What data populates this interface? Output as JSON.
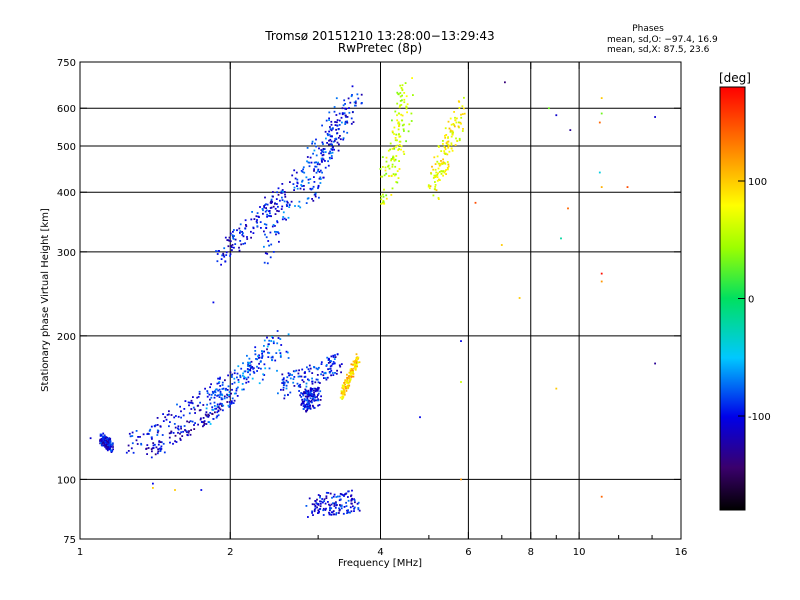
{
  "chart_data": {
    "type": "scatter",
    "title": "Tromsø 20151210 13:28:00−13:29:43",
    "subtitle": "RwPretec (8p)",
    "xlabel": "Frequency [MHz]",
    "ylabel": "Stationary phase Virtual Height [km]",
    "x_scale": "log",
    "y_scale": "log",
    "xlim": [
      1,
      16
    ],
    "ylim": [
      75,
      750
    ],
    "x_ticks": [
      1,
      2,
      4,
      6,
      8,
      10,
      16
    ],
    "x_tick_labels": [
      "1",
      "2",
      "4",
      "6",
      "8",
      "10",
      "16"
    ],
    "x_grid_lines": [
      2,
      4,
      6,
      8,
      10
    ],
    "y_ticks": [
      75,
      100,
      200,
      300,
      400,
      500,
      600,
      750
    ],
    "y_tick_labels": [
      "75",
      "100",
      "200",
      "300",
      "400",
      "500",
      "600",
      "750"
    ],
    "y_grid_lines": [
      100,
      200,
      300,
      400,
      500,
      600
    ],
    "grid": true,
    "colorbar": {
      "label": "[deg]",
      "range": [
        -180,
        180
      ],
      "ticks": [
        100,
        0,
        -100
      ],
      "tick_labels": [
        "100",
        "0",
        "-100"
      ]
    },
    "stats": {
      "title": "Phases",
      "line_o": "mean, sd,O: −97.4, 16.9",
      "line_x": "mean, sd,X:  87.5, 23.6"
    },
    "point_groups": [
      {
        "name": "low-1-lower",
        "x": [
          1.1,
          1.16
        ],
        "y": [
          122,
          117
        ],
        "phase": -105,
        "spread": 0.35
      },
      {
        "name": "low-2-main",
        "x": [
          1.25,
          2.35
        ],
        "y": [
          118,
          180
        ],
        "phase": -100,
        "spread": 0.6
      },
      {
        "name": "low-2-cluster",
        "x": [
          1.35,
          2.05
        ],
        "y": [
          112,
          150
        ],
        "phase": -110,
        "spread": 0.5
      },
      {
        "name": "low-2-spread",
        "x": [
          1.8,
          2.6
        ],
        "y": [
          140,
          195
        ],
        "phase": -80,
        "spread": 1.0
      },
      {
        "name": "low-2-tail",
        "x": [
          2.5,
          3.3
        ],
        "y": [
          155,
          175
        ],
        "phase": -95,
        "spread": 0.7
      },
      {
        "name": "low-3-tail",
        "x": [
          2.8,
          3.0
        ],
        "y": [
          145,
          150
        ],
        "phase": -100,
        "spread": 0.6
      },
      {
        "name": "low-X",
        "x": [
          3.35,
          3.6
        ],
        "y": [
          150,
          180
        ],
        "phase": 95,
        "spread": 0.3
      },
      {
        "name": "f-1",
        "x": [
          1.9,
          2.6
        ],
        "y": [
          295,
          400
        ],
        "phase": -100,
        "spread": 0.7
      },
      {
        "name": "f-2",
        "x": [
          2.3,
          3.4
        ],
        "y": [
          300,
          610
        ],
        "phase": -90,
        "spread": 0.9
      },
      {
        "name": "f-3",
        "x": [
          2.9,
          3.6
        ],
        "y": [
          400,
          650
        ],
        "phase": -95,
        "spread": 0.8
      },
      {
        "name": "f-X",
        "x": [
          4.1,
          4.5
        ],
        "y": [
          395,
          640
        ],
        "phase": 60,
        "spread": 1.2
      },
      {
        "name": "f-X2",
        "x": [
          5.1,
          5.8
        ],
        "y": [
          405,
          600
        ],
        "phase": 80,
        "spread": 0.9
      },
      {
        "name": "bottom",
        "x": [
          2.9,
          3.6
        ],
        "y": [
          88,
          90
        ],
        "phase": -100,
        "spread": 0.7
      }
    ],
    "scatter_points": [
      {
        "x": 1.05,
        "y": 122,
        "phase": -110
      },
      {
        "x": 1.4,
        "y": 98,
        "phase": -100
      },
      {
        "x": 1.4,
        "y": 96,
        "phase": 100
      },
      {
        "x": 1.55,
        "y": 95,
        "phase": 100
      },
      {
        "x": 1.75,
        "y": 95,
        "phase": -100
      },
      {
        "x": 1.85,
        "y": 235,
        "phase": -100
      },
      {
        "x": 4.8,
        "y": 135,
        "phase": -100
      },
      {
        "x": 5.8,
        "y": 160,
        "phase": 60
      },
      {
        "x": 5.8,
        "y": 100,
        "phase": 120
      },
      {
        "x": 5.8,
        "y": 195,
        "phase": -100
      },
      {
        "x": 6.2,
        "y": 380,
        "phase": 150
      },
      {
        "x": 7.0,
        "y": 310,
        "phase": 100
      },
      {
        "x": 7.1,
        "y": 680,
        "phase": -140
      },
      {
        "x": 7.6,
        "y": 240,
        "phase": 100
      },
      {
        "x": 8.7,
        "y": 600,
        "phase": 30
      },
      {
        "x": 9.0,
        "y": 580,
        "phase": -110
      },
      {
        "x": 9.2,
        "y": 320,
        "phase": -20
      },
      {
        "x": 9.5,
        "y": 370,
        "phase": 140
      },
      {
        "x": 9.0,
        "y": 155,
        "phase": 100
      },
      {
        "x": 9.6,
        "y": 540,
        "phase": -130
      },
      {
        "x": 11.1,
        "y": 630,
        "phase": 100
      },
      {
        "x": 11.1,
        "y": 585,
        "phase": 30
      },
      {
        "x": 11.0,
        "y": 560,
        "phase": 140
      },
      {
        "x": 11.0,
        "y": 440,
        "phase": -40
      },
      {
        "x": 11.1,
        "y": 410,
        "phase": 110
      },
      {
        "x": 11.1,
        "y": 270,
        "phase": 175
      },
      {
        "x": 11.1,
        "y": 260,
        "phase": 120
      },
      {
        "x": 11.1,
        "y": 92,
        "phase": 140
      },
      {
        "x": 12.5,
        "y": 410,
        "phase": 150
      },
      {
        "x": 14.2,
        "y": 575,
        "phase": -110
      },
      {
        "x": 14.2,
        "y": 175,
        "phase": -130
      }
    ]
  }
}
